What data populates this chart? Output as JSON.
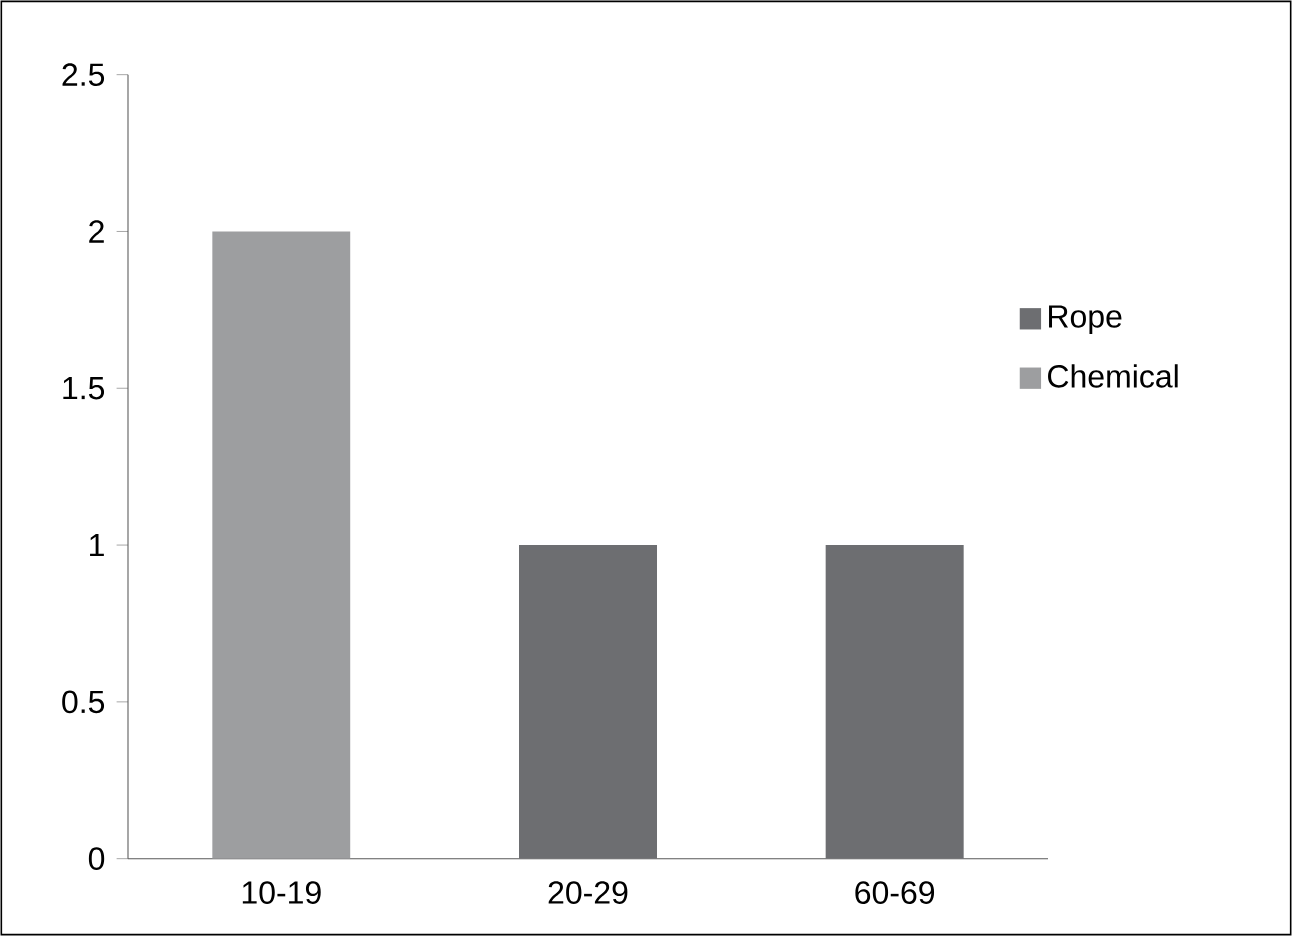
{
  "chart_data": {
    "type": "bar",
    "categories": [
      "10-19",
      "20-29",
      "60-69"
    ],
    "series": [
      {
        "name": "Rope",
        "color": "#6d6e71",
        "values": [
          null,
          1,
          1
        ]
      },
      {
        "name": "Chemical",
        "color": "#9d9ea0",
        "values": [
          2,
          null,
          null
        ]
      }
    ],
    "ylim": [
      0,
      2.5
    ],
    "yticks": [
      0,
      0.5,
      1,
      1.5,
      2,
      2.5
    ],
    "grid": false,
    "legend": "right"
  }
}
